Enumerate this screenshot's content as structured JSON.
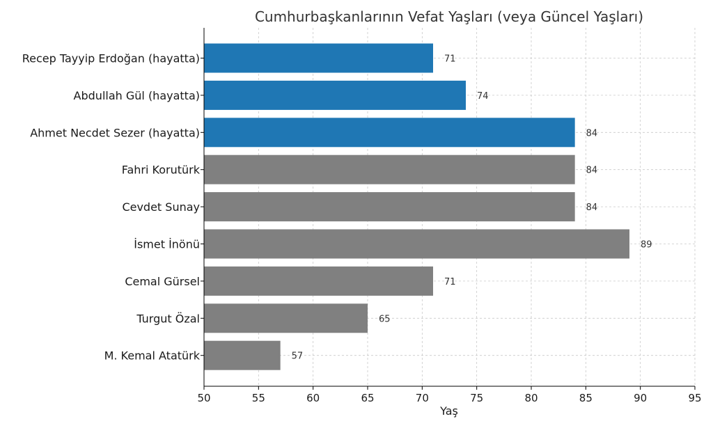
{
  "chart_data": {
    "type": "bar",
    "orientation": "horizontal",
    "title": "Cumhurbaşkanlarının Vefat Yaşları (veya Güncel Yaşları)",
    "xlabel": "Yaş",
    "ylabel": "",
    "xlim": [
      50,
      95
    ],
    "xticks": [
      50,
      55,
      60,
      65,
      70,
      75,
      80,
      85,
      90,
      95
    ],
    "grid": true,
    "categories": [
      "Recep Tayyip Erdoğan (hayatta)",
      "Abdullah Gül (hayatta)",
      "Ahmet Necdet Sezer (hayatta)",
      "Fahri Korutürk",
      "Cevdet Sunay",
      "İsmet İnönü",
      "Cemal Gürsel",
      "Turgut Özal",
      "M. Kemal Atatürk"
    ],
    "values": [
      71,
      74,
      84,
      84,
      84,
      89,
      71,
      65,
      57
    ],
    "bar_colors": [
      "#1f77b4",
      "#1f77b4",
      "#1f77b4",
      "#808080",
      "#808080",
      "#808080",
      "#808080",
      "#808080",
      "#808080"
    ]
  }
}
